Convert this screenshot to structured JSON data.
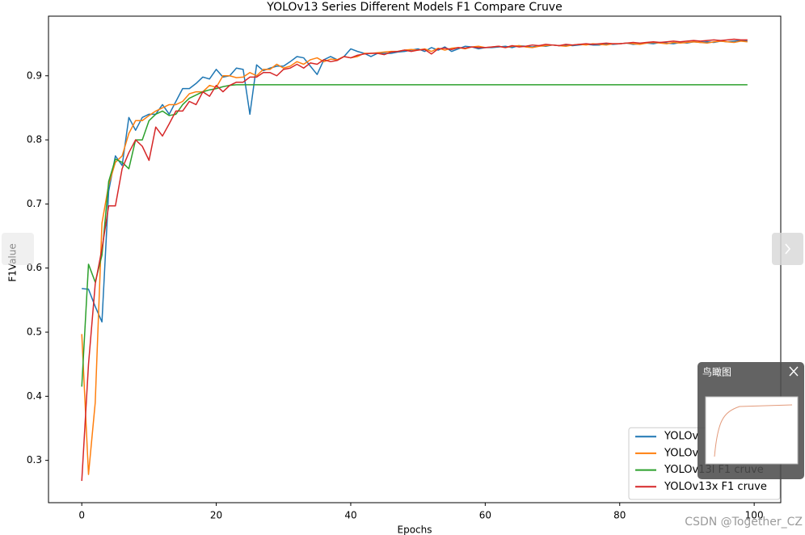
{
  "chart_data": {
    "type": "line",
    "title": "YOLOv13 Series Different Models F1 Compare Cruve",
    "x_label": "Epochs",
    "y_label": "F1Value",
    "x": [
      0,
      1,
      2,
      3,
      4,
      5,
      6,
      7,
      8,
      9,
      10,
      11,
      12,
      13,
      14,
      15,
      16,
      17,
      18,
      19,
      20,
      21,
      22,
      23,
      24,
      25,
      26,
      27,
      28,
      29,
      30,
      31,
      32,
      33,
      34,
      35,
      36,
      37,
      38,
      39,
      40,
      41,
      42,
      43,
      44,
      45,
      46,
      47,
      48,
      49,
      50,
      51,
      52,
      53,
      54,
      55,
      56,
      57,
      58,
      59,
      60,
      61,
      62,
      63,
      64,
      65,
      66,
      67,
      68,
      69,
      70,
      71,
      72,
      73,
      74,
      75,
      76,
      77,
      78,
      79,
      80,
      81,
      82,
      83,
      84,
      85,
      86,
      87,
      88,
      89,
      90,
      91,
      92,
      93,
      94,
      95,
      96,
      97,
      98,
      99
    ],
    "series": [
      {
        "name": "YOLOv",
        "color": "#1f77b4",
        "values": [
          0.568,
          0.567,
          0.54,
          0.516,
          0.72,
          0.775,
          0.76,
          0.835,
          0.815,
          0.835,
          0.84,
          0.84,
          0.855,
          0.84,
          0.86,
          0.88,
          0.88,
          0.888,
          0.898,
          0.895,
          0.91,
          0.898,
          0.9,
          0.912,
          0.91,
          0.84,
          0.917,
          0.908,
          0.912,
          0.915,
          0.915,
          0.922,
          0.93,
          0.928,
          0.915,
          0.902,
          0.925,
          0.93,
          0.925,
          0.93,
          0.942,
          0.938,
          0.935,
          0.93,
          0.935,
          0.935,
          0.935,
          0.937,
          0.938,
          0.94,
          0.942,
          0.938,
          0.944,
          0.94,
          0.945,
          0.938,
          0.942,
          0.946,
          0.945,
          0.942,
          0.944,
          0.944,
          0.945,
          0.946,
          0.944,
          0.947,
          0.946,
          0.945,
          0.947,
          0.946,
          0.948,
          0.947,
          0.948,
          0.947,
          0.948,
          0.949,
          0.948,
          0.948,
          0.95,
          0.949,
          0.95,
          0.951,
          0.949,
          0.95,
          0.951,
          0.95,
          0.952,
          0.951,
          0.95,
          0.952,
          0.951,
          0.953,
          0.952,
          0.953,
          0.952,
          0.954,
          0.953,
          0.954,
          0.955,
          0.954
        ]
      },
      {
        "name": "YOLOv",
        "color": "#ff7f0e",
        "values": [
          0.497,
          0.278,
          0.39,
          0.67,
          0.73,
          0.765,
          0.775,
          0.81,
          0.83,
          0.83,
          0.838,
          0.845,
          0.85,
          0.855,
          0.855,
          0.86,
          0.872,
          0.875,
          0.875,
          0.885,
          0.882,
          0.9,
          0.9,
          0.897,
          0.898,
          0.905,
          0.9,
          0.91,
          0.91,
          0.918,
          0.912,
          0.915,
          0.922,
          0.918,
          0.925,
          0.928,
          0.922,
          0.926,
          0.925,
          0.93,
          0.928,
          0.93,
          0.935,
          0.935,
          0.936,
          0.937,
          0.938,
          0.938,
          0.94,
          0.941,
          0.94,
          0.942,
          0.938,
          0.943,
          0.94,
          0.943,
          0.944,
          0.942,
          0.945,
          0.946,
          0.944,
          0.945,
          0.946,
          0.944,
          0.946,
          0.947,
          0.945,
          0.944,
          0.946,
          0.947,
          0.948,
          0.947,
          0.946,
          0.948,
          0.949,
          0.948,
          0.95,
          0.949,
          0.948,
          0.95,
          0.95,
          0.951,
          0.95,
          0.949,
          0.951,
          0.952,
          0.951,
          0.95,
          0.952,
          0.951,
          0.952,
          0.953,
          0.952,
          0.951,
          0.953,
          0.954,
          0.953,
          0.952,
          0.954,
          0.953
        ]
      },
      {
        "name": "YOLOv13l F1 cruve",
        "color": "#2ca02c",
        "values": [
          0.415,
          0.606,
          0.578,
          0.62,
          0.735,
          0.77,
          0.765,
          0.755,
          0.8,
          0.8,
          0.83,
          0.84,
          0.845,
          0.838,
          0.84,
          0.855,
          0.865,
          0.87,
          0.875,
          0.878,
          0.88,
          0.883,
          0.885,
          0.886,
          0.886,
          0.886,
          0.886,
          0.886,
          0.886,
          0.886,
          0.886,
          0.886,
          0.886,
          0.886,
          0.886,
          0.886,
          0.886,
          0.886,
          0.886,
          0.886,
          0.886,
          0.886,
          0.886,
          0.886,
          0.886,
          0.886,
          0.886,
          0.886,
          0.886,
          0.886,
          0.886,
          0.886,
          0.886,
          0.886,
          0.886,
          0.886,
          0.886,
          0.886,
          0.886,
          0.886,
          0.886,
          0.886,
          0.886,
          0.886,
          0.886,
          0.886,
          0.886,
          0.886,
          0.886,
          0.886,
          0.886,
          0.886,
          0.886,
          0.886,
          0.886,
          0.886,
          0.886,
          0.886,
          0.886,
          0.886,
          0.886,
          0.886,
          0.886,
          0.886,
          0.886,
          0.886,
          0.886,
          0.886,
          0.886,
          0.886,
          0.886,
          0.886,
          0.886,
          0.886,
          0.886,
          0.886,
          0.886,
          0.886,
          0.886,
          0.886
        ]
      },
      {
        "name": "YOLOv13x F1 cruve",
        "color": "#d62728",
        "values": [
          0.268,
          0.45,
          0.575,
          0.63,
          0.697,
          0.697,
          0.755,
          0.78,
          0.8,
          0.79,
          0.768,
          0.82,
          0.806,
          0.825,
          0.845,
          0.845,
          0.86,
          0.855,
          0.875,
          0.868,
          0.885,
          0.875,
          0.885,
          0.89,
          0.89,
          0.898,
          0.898,
          0.905,
          0.905,
          0.9,
          0.91,
          0.912,
          0.918,
          0.912,
          0.92,
          0.918,
          0.925,
          0.922,
          0.924,
          0.93,
          0.928,
          0.932,
          0.934,
          0.935,
          0.935,
          0.933,
          0.937,
          0.938,
          0.94,
          0.938,
          0.94,
          0.941,
          0.934,
          0.942,
          0.943,
          0.941,
          0.944,
          0.943,
          0.945,
          0.944,
          0.944,
          0.945,
          0.946,
          0.944,
          0.947,
          0.945,
          0.946,
          0.948,
          0.947,
          0.949,
          0.948,
          0.947,
          0.949,
          0.948,
          0.949,
          0.95,
          0.949,
          0.95,
          0.951,
          0.95,
          0.95,
          0.951,
          0.952,
          0.951,
          0.952,
          0.953,
          0.952,
          0.953,
          0.954,
          0.953,
          0.954,
          0.955,
          0.954,
          0.955,
          0.956,
          0.955,
          0.956,
          0.957,
          0.956,
          0.956
        ]
      }
    ],
    "xlim": [
      -4.95,
      103.95
    ],
    "xticks": [
      0,
      20,
      40,
      60,
      80,
      100
    ],
    "ylim": [
      0.234,
      0.993
    ],
    "yticks": [
      0.3,
      0.4,
      0.5,
      0.6,
      0.7,
      0.8,
      0.9
    ],
    "grid": false,
    "legend": "lower right"
  },
  "overview_panel": {
    "title": "鸟瞰图"
  },
  "watermark": "CSDN @Together_CZ"
}
